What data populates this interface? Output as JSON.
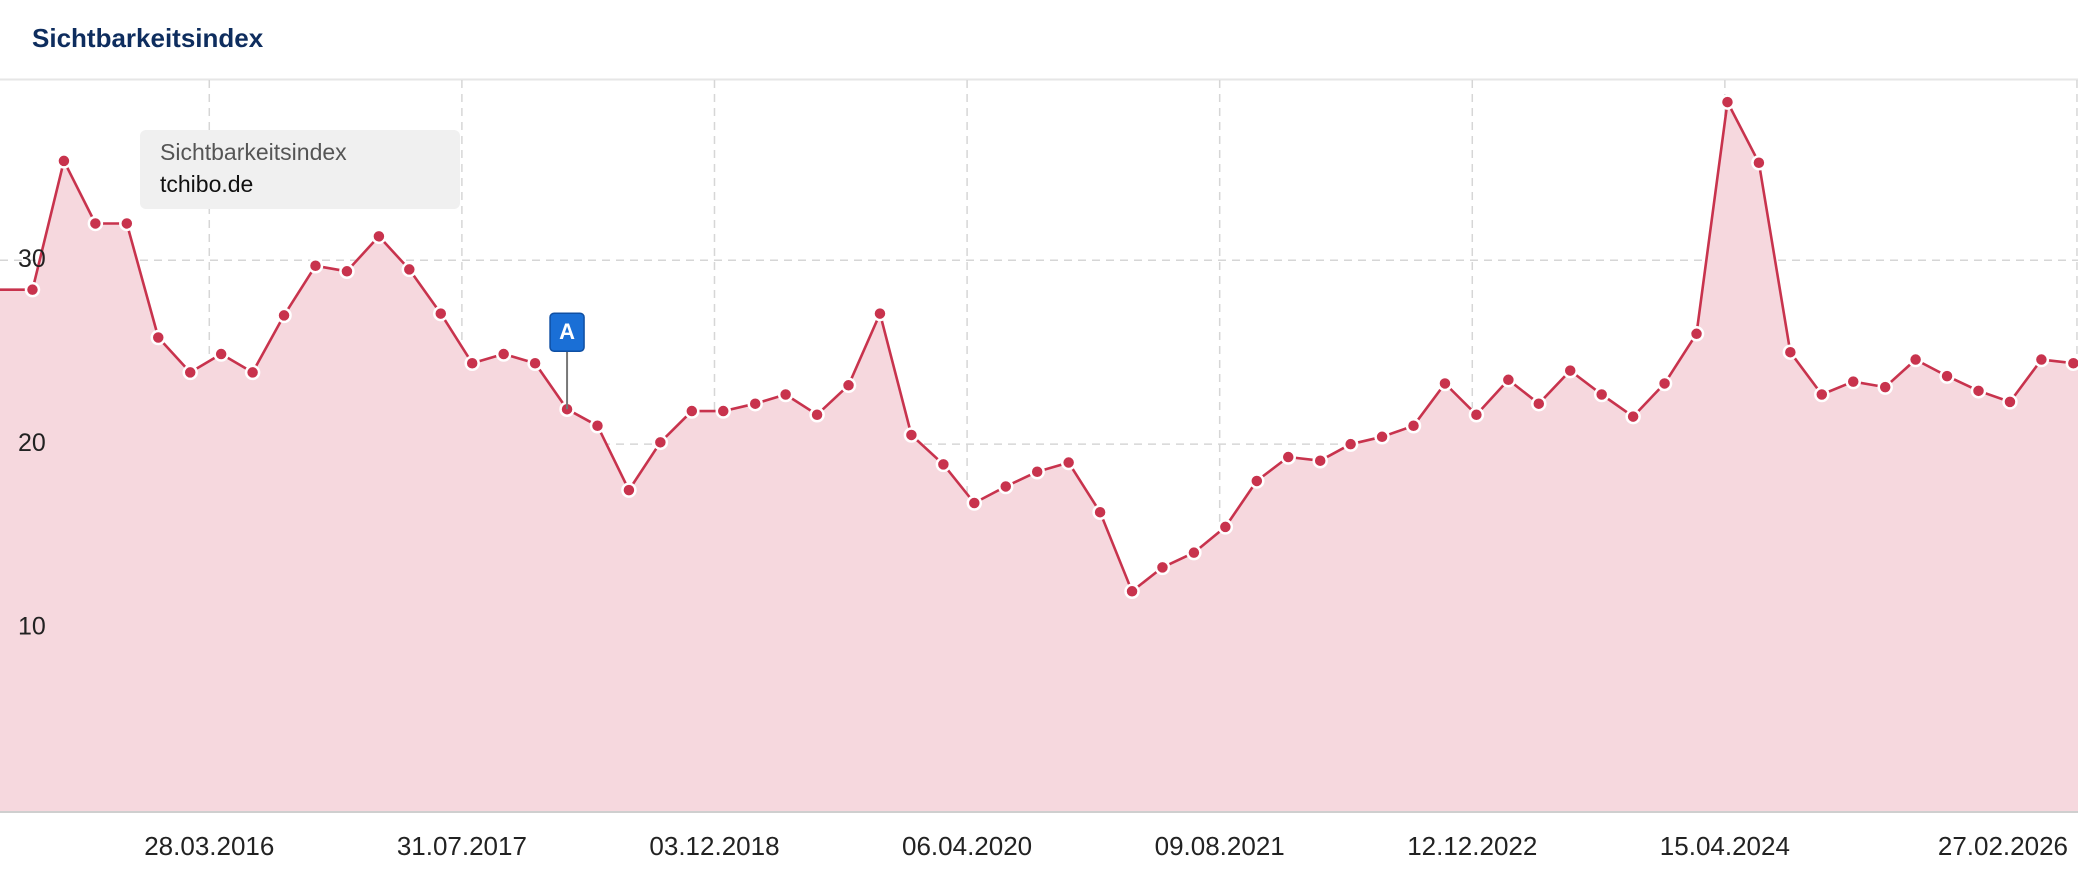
{
  "chart_data": {
    "type": "line",
    "title": "Sichtbarkeitsindex",
    "legend_title": "Sichtbarkeitsindex",
    "x": [
      "20.04.2015",
      "20.06.2015",
      "20.08.2015",
      "20.10.2015",
      "20.12.2015",
      "20.02.2016",
      "20.04.2016",
      "20.06.2016",
      "20.08.2016",
      "20.10.2016",
      "20.12.2016",
      "20.02.2017",
      "20.04.2017",
      "20.06.2017",
      "20.08.2017",
      "20.10.2017",
      "20.12.2017",
      "20.02.2018",
      "20.04.2018",
      "20.06.2018",
      "20.08.2018",
      "20.10.2018",
      "20.12.2018",
      "20.02.2019",
      "20.04.2019",
      "20.06.2019",
      "20.08.2019",
      "20.10.2019",
      "20.12.2019",
      "20.02.2020",
      "20.04.2020",
      "20.06.2020",
      "20.08.2020",
      "20.10.2020",
      "20.12.2020",
      "20.02.2021",
      "20.04.2021",
      "20.06.2021",
      "20.08.2021",
      "20.10.2021",
      "20.12.2021",
      "20.02.2022",
      "20.04.2022",
      "20.06.2022",
      "20.08.2022",
      "20.10.2022",
      "20.12.2022",
      "20.02.2023",
      "20.04.2023",
      "20.06.2023",
      "20.08.2023",
      "20.10.2023",
      "20.12.2023",
      "20.02.2024",
      "20.04.2024",
      "20.06.2024",
      "20.08.2024",
      "20.10.2024",
      "20.12.2024",
      "20.02.2025",
      "20.04.2025",
      "20.06.2025",
      "20.08.2025",
      "20.10.2025",
      "20.12.2025",
      "20.02.2026"
    ],
    "series": [
      {
        "name": "tchibo.de",
        "color": "#c8334d",
        "fill": "#f6d8de",
        "values": [
          28.4,
          35.4,
          32.0,
          32.0,
          25.8,
          23.9,
          24.9,
          23.9,
          27.0,
          29.7,
          29.4,
          31.3,
          29.5,
          27.1,
          24.4,
          24.9,
          24.4,
          21.9,
          21.0,
          17.5,
          20.1,
          21.8,
          21.8,
          22.2,
          22.7,
          21.6,
          23.2,
          27.1,
          20.5,
          18.9,
          16.8,
          17.7,
          18.5,
          19.0,
          16.3,
          12.0,
          13.3,
          14.1,
          15.5,
          18.0,
          19.3,
          19.1,
          20.0,
          20.4,
          21.0,
          23.3,
          21.6,
          23.5,
          22.2,
          24.0,
          22.7,
          21.5,
          23.3,
          26.0,
          38.6,
          35.3,
          25.0,
          22.7,
          23.4,
          23.1,
          24.6,
          23.7,
          22.9,
          22.3,
          24.6,
          24.4
        ]
      }
    ],
    "annotations": [
      {
        "text": "A",
        "x": "20.02.2018"
      }
    ],
    "xlim": [
      "16.02.2015",
      "01.03.2026"
    ],
    "xticks": [
      "28.03.2016",
      "31.07.2017",
      "03.12.2018",
      "06.04.2020",
      "09.08.2021",
      "12.12.2022",
      "15.04.2024",
      "27.02.2026"
    ],
    "ylim": [
      0,
      39.8
    ],
    "yticks": [
      10,
      20,
      30
    ],
    "grid": true
  }
}
